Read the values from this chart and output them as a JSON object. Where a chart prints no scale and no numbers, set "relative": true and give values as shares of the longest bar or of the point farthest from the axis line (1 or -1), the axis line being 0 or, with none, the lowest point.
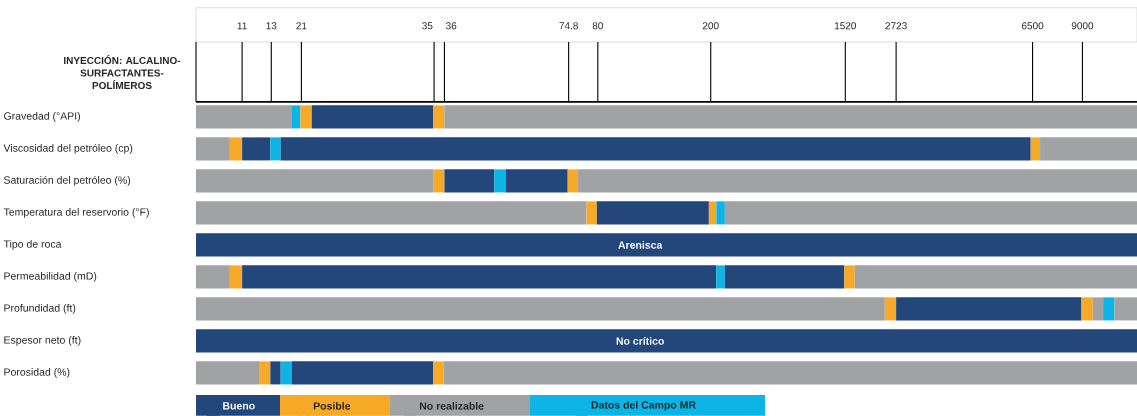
{
  "chart_data": {
    "type": "bar",
    "orientation": "horizontal",
    "relative": true,
    "stacked": true,
    "title": "INYECCIÓN: ALCALINO-SURFACTANTES-POLÍMEROS",
    "categories": [
      "Gravedad (°API)",
      "Viscosidad del petróleo (cp)",
      "Saturación del petróleo (%)",
      "Temperatura del reservorio (°F)",
      "Tipo de roca",
      "Permeabilidad (mD)",
      "Profundidad (ft)",
      "Espesor neto (ft)",
      "Porosidad (%)"
    ],
    "series": [
      {
        "values": [
          0.102,
          0.036,
          0.252,
          0.415,
          1,
          0.036,
          0.732,
          1,
          0.067
        ],
        "colors": [
          "#a0a2a3",
          "#a0a2a3",
          "#a0a2a3",
          "#a0a2a3",
          "#23477a",
          "#a0a2a3",
          "#a0a2a3",
          "#23477a",
          "#a0a2a3"
        ]
      },
      {
        "values": [
          0.009,
          0.013,
          0.012,
          0.011,
          null,
          0.013,
          0.012,
          null,
          0.012
        ],
        "colors": [
          "#0db4e6",
          "#f7a928",
          "#f7a928",
          "#f7a928",
          null,
          "#f7a928",
          "#f7a928",
          null,
          "#f7a928"
        ]
      },
      {
        "values": [
          0.012,
          0.03,
          0.053,
          0.119,
          null,
          0.504,
          0.197,
          null,
          0.011
        ],
        "colors": [
          "#f7a928",
          "#23477a",
          "#23477a",
          "#23477a",
          null,
          "#23477a",
          "#23477a",
          null,
          "#23477a"
        ]
      },
      {
        "values": [
          0.129,
          0.011,
          0.012,
          0.008,
          null,
          0.009,
          0.012,
          null,
          0.012
        ],
        "colors": [
          "#23477a",
          "#0db4e6",
          "#0db4e6",
          "#f7a928",
          null,
          "#0db4e6",
          "#f7a928",
          null,
          "#0db4e6"
        ]
      },
      {
        "values": [
          0.012,
          0.797,
          0.066,
          0.009,
          null,
          0.127,
          0.011,
          null,
          0.15
        ],
        "colors": [
          "#f7a928",
          "#23477a",
          "#23477a",
          "#0db4e6",
          null,
          "#23477a",
          "#a0a2a3",
          null,
          "#23477a"
        ]
      },
      {
        "values": [
          0.736,
          0.01,
          0.011,
          0.438,
          null,
          0.011,
          0.012,
          null,
          0.011
        ],
        "colors": [
          "#a0a2a3",
          "#f7a928",
          "#f7a928",
          "#a0a2a3",
          null,
          "#f7a928",
          "#0db4e6",
          null,
          "#f7a928"
        ]
      },
      {
        "values": [
          null,
          0.103,
          0.594,
          null,
          null,
          0.3,
          0.024,
          null,
          0.737
        ],
        "colors": [
          null,
          "#a0a2a3",
          "#a0a2a3",
          null,
          null,
          "#a0a2a3",
          "#a0a2a3",
          null,
          "#a0a2a3"
        ]
      },
      {
        "name": "Bueno",
        "color": "#23477a",
        "values": [
          null,
          null,
          null,
          null,
          null,
          null,
          null,
          null,
          null
        ]
      },
      {
        "name": "Posible",
        "color": "#f7a928",
        "values": [
          null,
          null,
          null,
          null,
          null,
          null,
          null,
          null,
          null
        ]
      },
      {
        "name": "No realizable",
        "color": "#a0a2a3",
        "values": [
          null,
          null,
          null,
          null,
          null,
          null,
          null,
          null,
          null
        ]
      },
      {
        "name": "Datos del Campo MR",
        "color": "#0db4e6",
        "values": [
          null,
          null,
          null,
          null,
          null,
          null,
          null,
          null,
          null
        ]
      }
    ],
    "annotations": [
      "11",
      "13",
      "21",
      "35",
      "36",
      "74.8",
      "80",
      "200",
      "1520",
      "2723",
      "6500",
      "9000",
      "Arenisca",
      "No crítico"
    ],
    "legend": "bottom left"
  }
}
